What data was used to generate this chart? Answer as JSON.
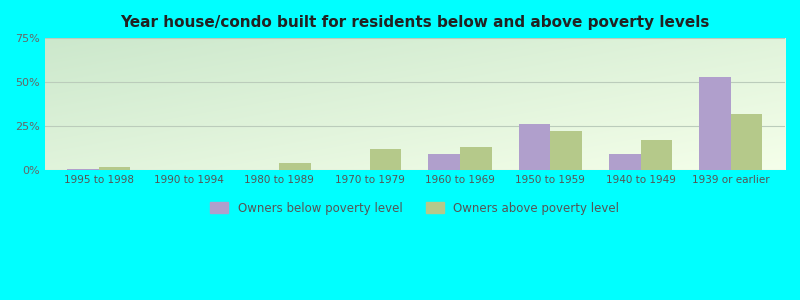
{
  "title": "Year house/condo built for residents below and above poverty levels",
  "categories": [
    "1995 to 1998",
    "1990 to 1994",
    "1980 to 1989",
    "1970 to 1979",
    "1960 to 1969",
    "1950 to 1959",
    "1940 to 1949",
    "1939 or earlier"
  ],
  "below_poverty": [
    0.5,
    0.0,
    0.0,
    0.0,
    9.0,
    26.0,
    9.0,
    53.0
  ],
  "above_poverty": [
    1.5,
    0.0,
    4.0,
    12.0,
    13.0,
    22.0,
    17.0,
    32.0
  ],
  "below_color": "#b09fcc",
  "above_color": "#b5c98a",
  "ylim": [
    0,
    75
  ],
  "yticks": [
    0,
    25,
    50,
    75
  ],
  "yticklabels": [
    "0%",
    "25%",
    "50%",
    "75%"
  ],
  "bg_top_left": "#cce8cc",
  "bg_bottom_right": "#eaf5ea",
  "outer_bg": "#00ffff",
  "grid_color": "#bbccbb",
  "legend_below": "Owners below poverty level",
  "legend_above": "Owners above poverty level",
  "bar_width": 0.35
}
